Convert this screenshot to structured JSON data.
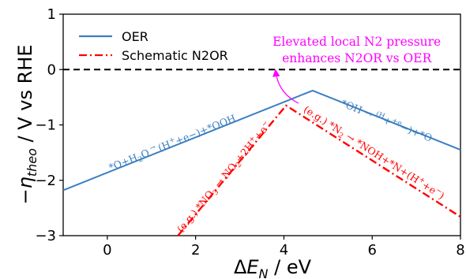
{
  "chart_data": {
    "type": "line",
    "title": "",
    "xlabel": "ΔE_N / eV",
    "ylabel": "−η_theo / V vs RHE",
    "xlim": [
      -1,
      8
    ],
    "ylim": [
      -3,
      1
    ],
    "xticks": [
      "0",
      "2",
      "4",
      "6",
      "8"
    ],
    "yticks": [
      "1",
      "0",
      "−1",
      "−2",
      "−3"
    ],
    "xtick_values": [
      0,
      2,
      4,
      6,
      8
    ],
    "ytick_values": [
      1,
      0,
      -1,
      -2,
      -3
    ],
    "grid": false,
    "legend_position": "top-left",
    "reference_line": {
      "y": 0,
      "style": "dashed",
      "color": "#000000"
    },
    "series": [
      {
        "name": "OER",
        "color": "#3a7fc1",
        "style": "solid",
        "points": [
          [
            -1.0,
            -2.18
          ],
          [
            4.65,
            -0.38
          ],
          [
            8.0,
            -1.45
          ]
        ]
      },
      {
        "name": "Schematic N2OR",
        "color": "#ff0000",
        "style": "dashdot",
        "points": [
          [
            1.6,
            -3.0
          ],
          [
            4.05,
            -0.65
          ],
          [
            8.0,
            -2.66
          ]
        ]
      }
    ],
    "annotations": [
      {
        "text_parts": [
          "*O+H",
          "2",
          "O",
          " → ",
          "(H",
          "+",
          "+e",
          "−",
          ")+*OOH"
        ],
        "color": "#3a7fc1",
        "x": 1.5,
        "y": -1.38
      },
      {
        "text_parts": [
          "*OH",
          " → ",
          "(H",
          "+",
          "+e",
          "−",
          ")+*O"
        ],
        "color": "#3a7fc1",
        "x": 6.3,
        "y": -0.98
      },
      {
        "text_parts": [
          "(e.g.) *NO",
          "3",
          " → ",
          "NO",
          "2",
          "+2H",
          "+",
          "+e",
          "−"
        ],
        "color": "#ff0000",
        "x": 2.7,
        "y": -1.98
      },
      {
        "text_parts": [
          "(e.g.) *N",
          "2",
          " → ",
          "*NOH+*N+(H",
          "+",
          "+e",
          "−",
          ")"
        ],
        "color": "#ff0000",
        "x": 6.0,
        "y": -1.55
      },
      {
        "text": "Elevated local N2 pressure\nenhances N2OR vs OER",
        "color": "#ff00ff",
        "x": 5.65,
        "y": 0.43
      }
    ]
  }
}
